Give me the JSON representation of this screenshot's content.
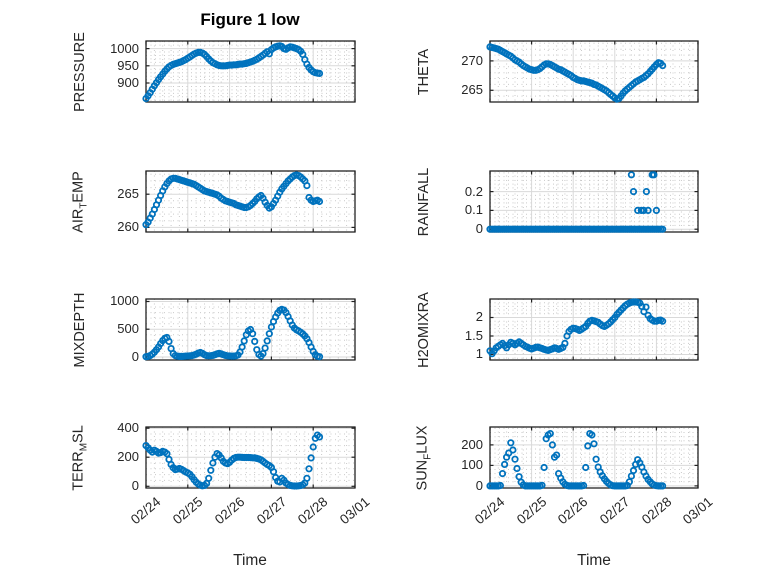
{
  "title": "Figure 1 low",
  "marker_color": "#0072BD",
  "x_axis": {
    "label": "Time",
    "tick_labels": [
      "02/24",
      "02/25",
      "02/26",
      "02/27",
      "02/28",
      "03/01"
    ],
    "lim_days": [
      0,
      5
    ],
    "minor_step": 0.2
  },
  "chart_data": {
    "type": "scatter",
    "marker": "open-circle",
    "grid": "major-solid-minor-dotted",
    "t0": 0,
    "dt": 0.05,
    "subplots": [
      {
        "id": "pressure",
        "ylabel": {
          "pre": "PRESSURE",
          "sub": "",
          "post": ""
        },
        "yticks": [
          900,
          950,
          1000
        ],
        "ytick_labels": [
          "900",
          "950",
          "1000"
        ],
        "ylim": [
          845,
          1022
        ],
        "yminor_step": 10,
        "values": [
          855,
          863,
          872,
          882,
          892,
          901,
          910,
          918,
          926,
          934,
          941,
          947,
          951,
          954,
          956,
          958,
          960,
          962,
          965,
          968,
          972,
          976,
          980,
          984,
          987,
          989,
          989,
          987,
          983,
          977,
          970,
          964,
          959,
          956,
          953,
          951,
          950,
          950,
          950,
          951,
          952,
          952,
          953,
          953,
          954,
          955,
          955,
          956,
          957,
          959,
          961,
          963,
          966,
          969,
          973,
          977,
          981,
          986,
          991,
          985,
          997,
          1002,
          1005,
          1007,
          1008,
          1006,
          1000,
          998,
          1002,
          1005,
          1004,
          1002,
          1000,
          997,
          992,
          983,
          968,
          955,
          945,
          938,
          933,
          930,
          929,
          928
        ]
      },
      {
        "id": "theta",
        "ylabel": {
          "pre": "THETA",
          "sub": "",
          "post": ""
        },
        "yticks": [
          265,
          270
        ],
        "ytick_labels": [
          "265",
          "270"
        ],
        "ylim": [
          263.0,
          273.4
        ],
        "yminor_step": 1,
        "values": [
          272.4,
          272.3,
          272.2,
          272.1,
          272.0,
          271.8,
          271.6,
          271.4,
          271.2,
          271.0,
          270.8,
          270.5,
          270.2,
          270.0,
          269.8,
          269.5,
          269.2,
          269.0,
          268.8,
          268.6,
          268.5,
          268.4,
          268.4,
          268.5,
          268.7,
          269.0,
          269.3,
          269.5,
          269.5,
          269.4,
          269.2,
          269.0,
          268.8,
          268.6,
          268.5,
          268.3,
          268.1,
          267.9,
          267.7,
          267.5,
          267.2,
          267.0,
          266.8,
          266.7,
          266.6,
          266.6,
          266.5,
          266.4,
          266.3,
          266.2,
          266.0,
          265.9,
          265.7,
          265.5,
          265.3,
          265.1,
          264.9,
          264.6,
          264.3,
          264.0,
          263.7,
          263.5,
          263.6,
          264.0,
          264.5,
          264.9,
          265.2,
          265.5,
          265.8,
          266.1,
          266.4,
          266.6,
          266.8,
          267.0,
          267.2,
          267.5,
          267.8,
          268.2,
          268.6,
          269.0,
          269.4,
          269.7,
          269.6,
          269.2
        ]
      },
      {
        "id": "airtemp",
        "ylabel": {
          "pre": "AIR",
          "sub": "T",
          "post": "EMP"
        },
        "yticks": [
          260,
          265
        ],
        "ytick_labels": [
          "260",
          "265"
        ],
        "ylim": [
          259.3,
          268.5
        ],
        "yminor_step": 1,
        "values": [
          260.4,
          260.8,
          261.4,
          262.0,
          262.7,
          263.4,
          264.1,
          264.8,
          265.5,
          266.1,
          266.6,
          267.0,
          267.3,
          267.4,
          267.4,
          267.3,
          267.2,
          267.1,
          267.0,
          266.9,
          266.8,
          266.7,
          266.6,
          266.5,
          266.3,
          266.1,
          265.9,
          265.7,
          265.5,
          265.4,
          265.3,
          265.2,
          265.1,
          265.0,
          264.9,
          264.7,
          264.4,
          264.2,
          264.0,
          263.9,
          263.8,
          263.7,
          263.6,
          263.4,
          263.3,
          263.2,
          263.1,
          263.0,
          263.0,
          263.1,
          263.3,
          263.6,
          263.9,
          264.3,
          264.6,
          264.8,
          264.4,
          263.8,
          263.3,
          262.9,
          263.1,
          263.6,
          264.1,
          264.7,
          265.3,
          265.8,
          266.2,
          266.6,
          267.0,
          267.3,
          267.6,
          267.8,
          267.9,
          267.8,
          267.6,
          267.3,
          267.0,
          266.3,
          264.5,
          264.1,
          263.9,
          264.0,
          264.1,
          263.9
        ]
      },
      {
        "id": "rainfall",
        "ylabel": {
          "pre": "RAINFALL",
          "sub": "",
          "post": ""
        },
        "yticks": [
          0,
          0.1,
          0.2
        ],
        "ytick_labels": [
          "0",
          "0.1",
          "0.2"
        ],
        "ylim": [
          -0.015,
          0.31
        ],
        "yminor_step": 0.02,
        "values": [
          0,
          0,
          0,
          0,
          0,
          0,
          0,
          0,
          0,
          0,
          0,
          0,
          0,
          0,
          0,
          0,
          0,
          0,
          0,
          0,
          0,
          0,
          0,
          0,
          0,
          0,
          0,
          0,
          0,
          0,
          0,
          0,
          0,
          0,
          0,
          0,
          0,
          0,
          0,
          0,
          0,
          0,
          0,
          0,
          0,
          0,
          0,
          0,
          0,
          0,
          0,
          0,
          0,
          0,
          0,
          0,
          0,
          0,
          0,
          0,
          0,
          0,
          0,
          0,
          0,
          0,
          0,
          0,
          0,
          0,
          0,
          0,
          0,
          0,
          0,
          0,
          0,
          0,
          0,
          0,
          0,
          0,
          0,
          0
        ],
        "extra": [
          [
            3.4,
            0.29
          ],
          [
            3.45,
            0.2
          ],
          [
            3.55,
            0.1
          ],
          [
            3.64,
            0.1
          ],
          [
            3.7,
            0.1
          ],
          [
            3.76,
            0.2
          ],
          [
            3.8,
            0.1
          ],
          [
            3.9,
            0.29
          ],
          [
            3.94,
            0.29
          ],
          [
            4.0,
            0.1
          ]
        ]
      },
      {
        "id": "mixdepth",
        "ylabel": {
          "pre": "MIXDEPTH",
          "sub": "",
          "post": ""
        },
        "yticks": [
          0,
          500,
          1000
        ],
        "ytick_labels": [
          "0",
          "500",
          "1000"
        ],
        "ylim": [
          -55,
          1045
        ],
        "yminor_step": 100,
        "values": [
          5,
          10,
          25,
          50,
          85,
          130,
          180,
          240,
          295,
          335,
          350,
          280,
          150,
          60,
          25,
          15,
          10,
          10,
          12,
          15,
          18,
          20,
          25,
          35,
          50,
          70,
          80,
          65,
          40,
          25,
          20,
          22,
          28,
          40,
          55,
          65,
          55,
          40,
          28,
          20,
          18,
          15,
          15,
          20,
          35,
          90,
          180,
          290,
          400,
          470,
          495,
          420,
          280,
          130,
          45,
          15,
          60,
          160,
          290,
          420,
          540,
          640,
          720,
          790,
          840,
          860,
          845,
          800,
          730,
          650,
          575,
          520,
          490,
          470,
          445,
          415,
          380,
          330,
          260,
          180,
          100,
          40,
          12,
          4
        ]
      },
      {
        "id": "h2omixra",
        "ylabel": {
          "pre": "H2OMIXRA",
          "sub": "",
          "post": ""
        },
        "yticks": [
          1,
          1.5,
          2
        ],
        "ytick_labels": [
          "1",
          "1.5",
          "2"
        ],
        "ylim": [
          0.85,
          2.5
        ],
        "yminor_step": 0.1,
        "values": [
          1.1,
          1.02,
          1.1,
          1.18,
          1.22,
          1.26,
          1.3,
          1.24,
          1.18,
          1.26,
          1.33,
          1.3,
          1.26,
          1.3,
          1.34,
          1.3,
          1.26,
          1.22,
          1.2,
          1.17,
          1.15,
          1.17,
          1.19,
          1.2,
          1.18,
          1.16,
          1.14,
          1.12,
          1.11,
          1.13,
          1.15,
          1.18,
          1.16,
          1.14,
          1.16,
          1.19,
          1.3,
          1.5,
          1.62,
          1.68,
          1.71,
          1.7,
          1.68,
          1.65,
          1.68,
          1.72,
          1.76,
          1.84,
          1.9,
          1.92,
          1.91,
          1.89,
          1.87,
          1.82,
          1.78,
          1.76,
          1.79,
          1.83,
          1.88,
          1.94,
          2.0,
          2.08,
          2.14,
          2.2,
          2.26,
          2.32,
          2.36,
          2.39,
          2.41,
          2.42,
          2.42,
          2.41,
          2.39,
          2.3,
          2.16,
          2.28,
          2.06,
          1.97,
          1.93,
          1.9,
          1.9,
          1.92,
          1.93,
          1.9
        ]
      },
      {
        "id": "terrmsl",
        "ylabel": {
          "pre": "TERR",
          "sub": "M",
          "post": "SL"
        },
        "yticks": [
          0,
          200,
          400
        ],
        "ytick_labels": [
          "0",
          "200",
          "400"
        ],
        "ylim": [
          -12,
          408
        ],
        "yminor_step": 40,
        "values": [
          280,
          265,
          248,
          235,
          248,
          240,
          228,
          232,
          240,
          235,
          224,
          185,
          150,
          128,
          115,
          118,
          122,
          117,
          108,
          98,
          92,
          82,
          65,
          45,
          28,
          15,
          8,
          3,
          6,
          20,
          55,
          110,
          160,
          200,
          225,
          215,
          195,
          172,
          160,
          155,
          165,
          180,
          192,
          198,
          200,
          200,
          199,
          198,
          198,
          198,
          197,
          196,
          195,
          192,
          188,
          182,
          172,
          160,
          150,
          142,
          130,
          100,
          60,
          35,
          30,
          55,
          42,
          22,
          12,
          6,
          3,
          2,
          2,
          3,
          5,
          10,
          22,
          55,
          120,
          195,
          270,
          330,
          352,
          340
        ]
      },
      {
        "id": "sunflux",
        "ylabel": {
          "pre": "SUN",
          "sub": "F",
          "post": "LUX"
        },
        "yticks": [
          0,
          100,
          200
        ],
        "ytick_labels": [
          "0",
          "100",
          "200"
        ],
        "ylim": [
          -10,
          287
        ],
        "yminor_step": 20,
        "values": [
          0,
          0,
          0,
          0,
          0,
          2,
          60,
          105,
          140,
          160,
          210,
          175,
          130,
          85,
          45,
          18,
          5,
          0,
          0,
          0,
          0,
          0,
          0,
          0,
          0,
          3,
          90,
          230,
          248,
          255,
          200,
          140,
          150,
          60,
          38,
          20,
          8,
          2,
          0,
          0,
          0,
          0,
          0,
          0,
          0,
          2,
          90,
          195,
          255,
          248,
          205,
          130,
          92,
          68,
          50,
          35,
          22,
          12,
          5,
          1,
          0,
          0,
          0,
          0,
          0,
          0,
          2,
          20,
          48,
          75,
          105,
          128,
          112,
          92,
          68,
          48,
          32,
          20,
          10,
          4,
          1,
          0,
          0,
          0
        ]
      }
    ]
  }
}
